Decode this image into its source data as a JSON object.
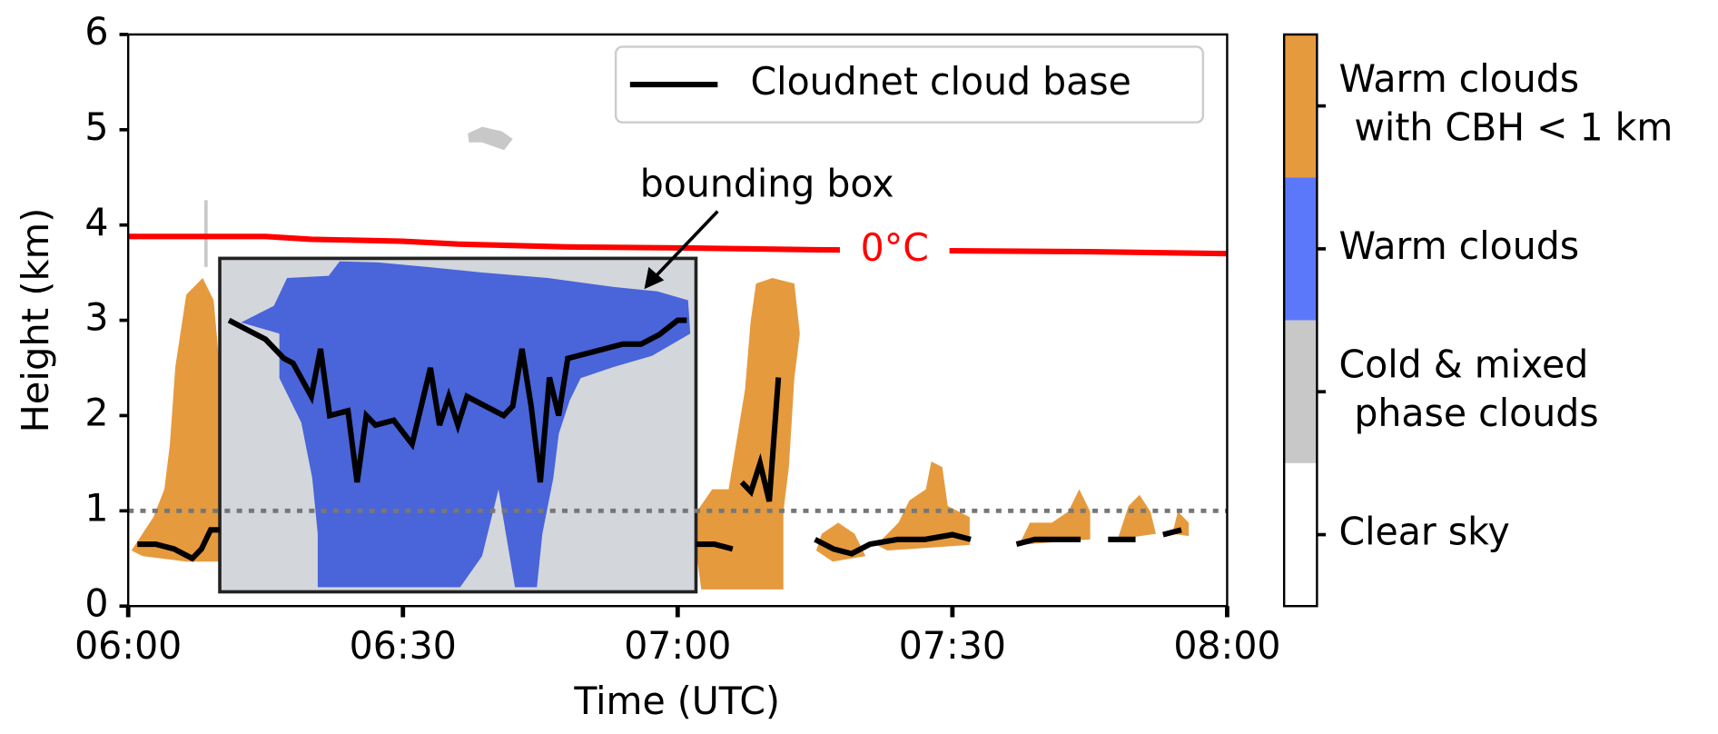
{
  "chart_data": {
    "type": "line",
    "x_label": "Time (UTC)",
    "y_label": "Height (km)",
    "xlim": [
      "06:00",
      "08:00"
    ],
    "xticks": [
      "06:00",
      "06:30",
      "07:00",
      "07:30",
      "08:00"
    ],
    "ylim": [
      0,
      6
    ],
    "yticks": [
      0,
      1,
      2,
      3,
      4,
      5,
      6
    ],
    "series": [
      {
        "name": "Cloudnet cloud base",
        "color": "#000000",
        "x": [
          "06:01",
          "06:03",
          "06:05",
          "06:07",
          "06:08",
          "06:09",
          "06:10",
          "06:10",
          "06:11",
          "06:13",
          "06:15",
          "06:17",
          "06:18",
          "06:20",
          "06:21",
          "06:22",
          "06:24",
          "06:25",
          "06:26",
          "06:27",
          "06:29",
          "06:31",
          "06:32",
          "06:33",
          "06:34",
          "06:35",
          "06:36",
          "06:37",
          "06:39",
          "06:41",
          "06:42",
          "06:43",
          "06:44",
          "06:45",
          "06:46",
          "06:47",
          "06:48",
          "06:50",
          "06:52",
          "06:54",
          "06:56",
          "06:58",
          "07:00",
          "07:01",
          "07:01",
          "07:02",
          "07:04",
          "07:06",
          "07:06",
          "07:07",
          "07:08",
          "07:09",
          "07:10",
          "07:11",
          "07:11",
          "07:15",
          "07:17",
          "07:19",
          "07:21",
          "07:24",
          "07:27",
          "07:30",
          "07:32",
          "07:32",
          "07:37",
          "07:39",
          "07:42",
          "07:44",
          "07:44",
          "07:47",
          "07:50",
          "07:50",
          "07:53",
          "07:55"
        ],
        "values": [
          0.65,
          0.65,
          0.6,
          0.5,
          0.6,
          0.8,
          0.8,
          null,
          3.0,
          2.9,
          2.8,
          2.6,
          2.55,
          2.2,
          2.7,
          2.0,
          2.05,
          1.3,
          2.0,
          1.9,
          1.95,
          1.7,
          2.1,
          2.5,
          1.9,
          2.2,
          1.9,
          2.2,
          2.1,
          2.0,
          2.1,
          2.7,
          2.1,
          1.3,
          2.4,
          2.0,
          2.6,
          2.65,
          2.7,
          2.75,
          2.75,
          2.85,
          3.0,
          3.0,
          null,
          0.65,
          0.65,
          0.6,
          null,
          1.3,
          1.2,
          1.5,
          1.1,
          2.4,
          null,
          0.7,
          0.6,
          0.55,
          0.65,
          0.7,
          0.7,
          0.75,
          0.7,
          null,
          0.65,
          0.7,
          0.7,
          0.7,
          null,
          0.7,
          0.7,
          null,
          0.75,
          0.8
        ]
      },
      {
        "label": "0°C",
        "color": "#ff0000",
        "x": [
          "06:00",
          "06:15",
          "06:20",
          "06:30",
          "06:36",
          "06:48",
          "07:00",
          "07:15",
          "07:30",
          "07:45",
          "08:00"
        ],
        "values": [
          3.88,
          3.88,
          3.85,
          3.83,
          3.8,
          3.77,
          3.76,
          3.74,
          3.73,
          3.72,
          3.7
        ]
      }
    ],
    "reference_line": 1,
    "bounding_box": {
      "label": "bounding box",
      "x": [
        "06:10",
        "07:02"
      ],
      "y": [
        0.15,
        3.65
      ]
    },
    "colorbar": [
      {
        "label": [
          "Warm clouds",
          "with CBH < 1 km"
        ],
        "color": "#e69a3e"
      },
      {
        "label": [
          "Warm clouds"
        ],
        "color": "#5b78fb"
      },
      {
        "label": [
          "Cold & mixed",
          "phase clouds"
        ],
        "color": "#c8c8c8"
      },
      {
        "label": [
          "Clear sky"
        ],
        "color": "#ffffff"
      }
    ]
  }
}
